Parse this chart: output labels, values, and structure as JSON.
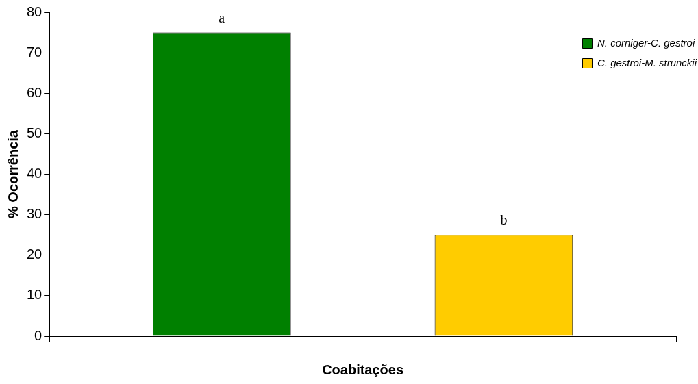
{
  "chart_data": {
    "type": "bar",
    "xlabel": "Coabitações",
    "ylabel": "% Ocorrência",
    "categories": [
      null
    ],
    "series": [
      {
        "name": "N. corniger-C. gestroi",
        "color": "#008000",
        "values": [
          75
        ],
        "value_labels": [
          "a"
        ]
      },
      {
        "name": "C. gestroi-M. strunckii",
        "color": "#ffcc00",
        "values": [
          25
        ],
        "value_labels": [
          "b"
        ]
      }
    ],
    "ylim": [
      0,
      80
    ],
    "yticks": [
      0,
      10,
      20,
      30,
      40,
      50,
      60,
      70,
      80
    ],
    "grid": false,
    "legend": "top right"
  }
}
